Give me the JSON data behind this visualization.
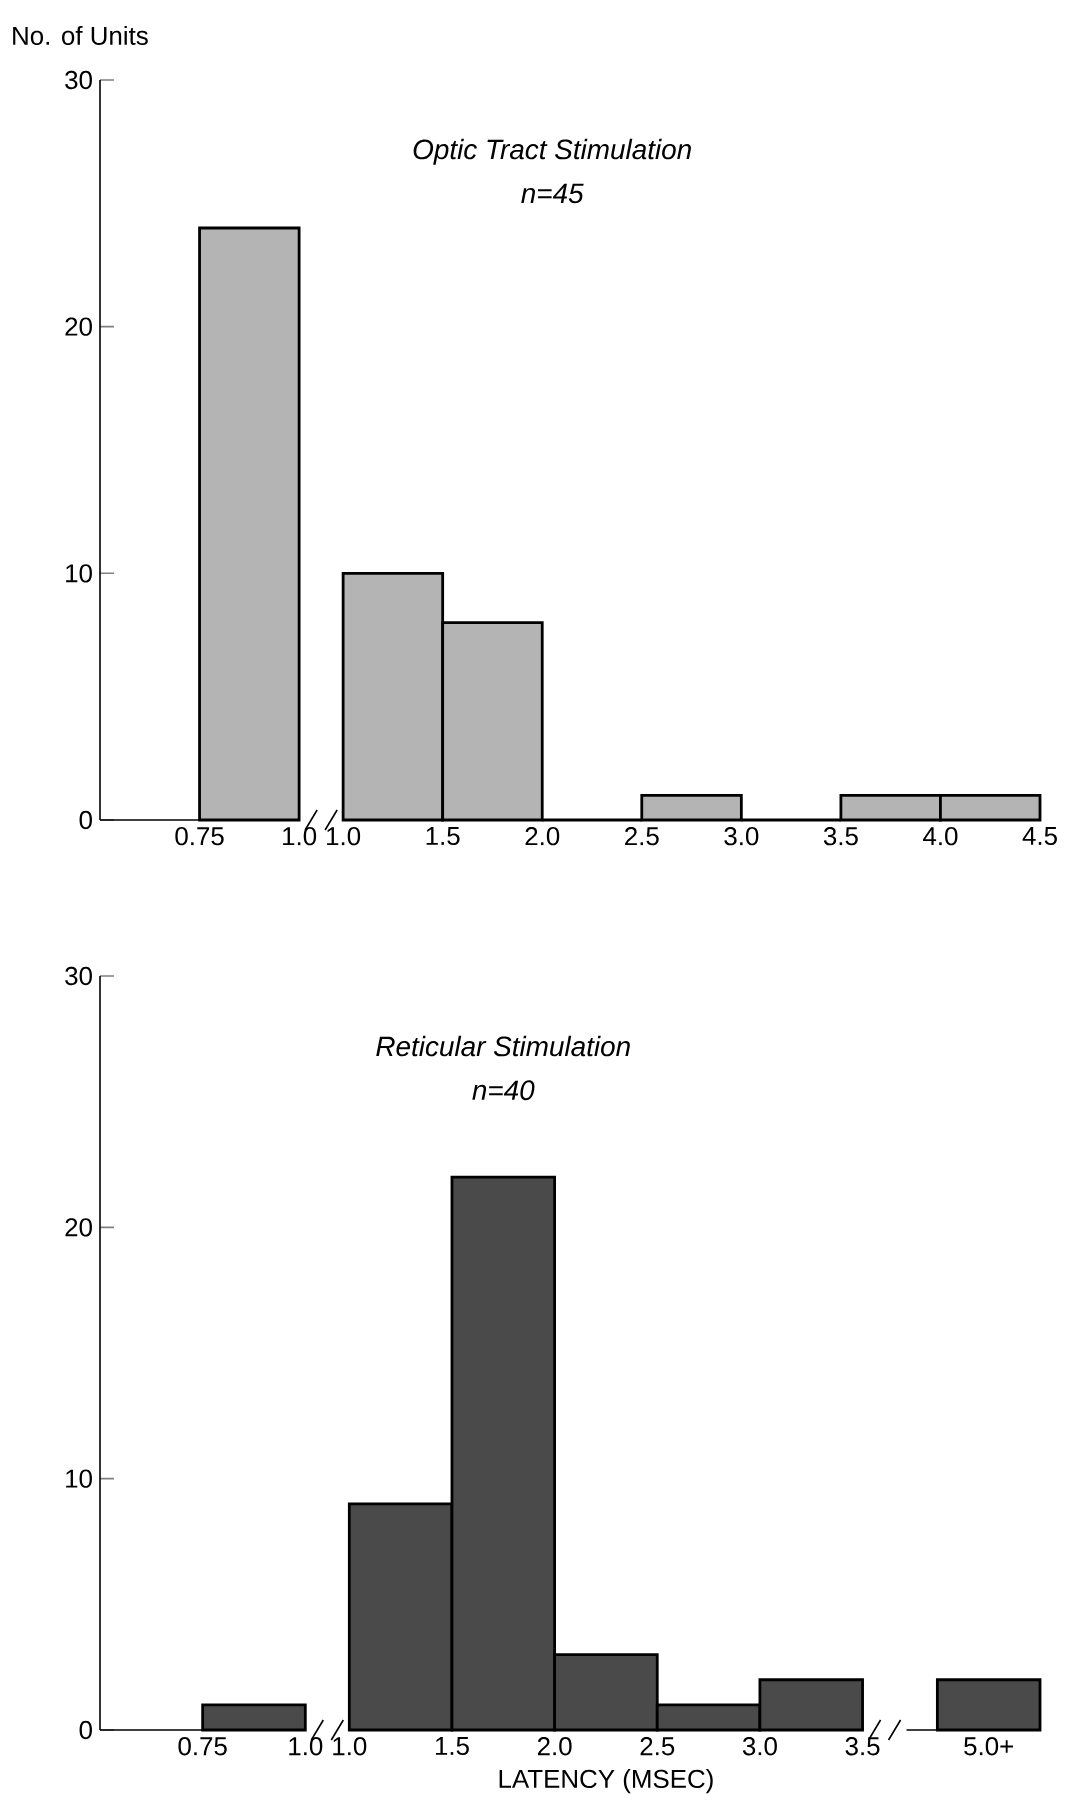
{
  "chart_data": [
    {
      "type": "histogram",
      "ylabel": "No. of Units",
      "bins": [
        0.75,
        1.0
      ],
      "values": [
        24
      ],
      "color": "#b4b4b4",
      "xlim": [
        0.5,
        1.0
      ],
      "ylim": [
        0,
        30
      ],
      "yticks": [
        0,
        10,
        20,
        30
      ],
      "xticks": [
        {
          "value": 0.75,
          "label": "0.75"
        },
        {
          "value": 1.0,
          "label": "1.0"
        }
      ]
    },
    {
      "type": "histogram",
      "annotations": [
        "Optic Tract Stimulation",
        "n=45"
      ],
      "tick_labels": "x",
      "bins": [
        1.0,
        1.5,
        2.0,
        2.5,
        3.0,
        3.5,
        4.0,
        4.5
      ],
      "values": [
        10,
        8,
        0,
        1,
        0,
        1,
        1
      ],
      "color": "#b4b4b4",
      "xlim": [
        1.0,
        4.5
      ],
      "ylim": [
        0,
        30
      ],
      "xticks": [
        {
          "value": 1.0,
          "label": "1.0"
        },
        {
          "value": 1.5,
          "label": "1.5"
        },
        {
          "value": 2.0,
          "label": "2.0"
        },
        {
          "value": 2.5,
          "label": "2.5"
        },
        {
          "value": 3.0,
          "label": "3.0"
        },
        {
          "value": 3.5,
          "label": "3.5"
        },
        {
          "value": 4.0,
          "label": "4.0"
        },
        {
          "value": 4.5,
          "label": "4.5"
        }
      ]
    },
    {
      "type": "histogram",
      "bins": [
        0.75,
        1.0
      ],
      "values": [
        1
      ],
      "color": "#4a4a4a",
      "xlim": [
        0.5,
        1.0
      ],
      "ylim": [
        0,
        30
      ],
      "yticks": [
        0,
        10,
        20,
        30
      ],
      "xticks": [
        {
          "value": 0.75,
          "label": "0.75"
        },
        {
          "value": 1.0,
          "label": "1.0"
        }
      ]
    },
    {
      "type": "histogram",
      "annotations": [
        "Reticular Stimulation",
        "n=40"
      ],
      "xlabel": "LATENCY (MSEC)",
      "tick_labels": "x",
      "bins": [
        1.0,
        1.5,
        2.0,
        2.5,
        3.0,
        3.5
      ],
      "values": [
        9,
        22,
        3,
        1,
        2
      ],
      "color": "#4a4a4a",
      "xlim": [
        1.0,
        3.5
      ],
      "ylim": [
        0,
        30
      ],
      "xticks": [
        {
          "value": 1.0,
          "label": "1.0"
        },
        {
          "value": 1.5,
          "label": "1.5"
        },
        {
          "value": 2.0,
          "label": "2.0"
        },
        {
          "value": 2.5,
          "label": "2.5"
        },
        {
          "value": 3.0,
          "label": "3.0"
        },
        {
          "value": 3.5,
          "label": "3.5"
        }
      ]
    },
    {
      "type": "bar",
      "tick_labels": "x",
      "categories": [
        "5.0+"
      ],
      "values": [
        2
      ],
      "color": "#4a4a4a",
      "ylim": [
        0,
        30
      ]
    }
  ]
}
